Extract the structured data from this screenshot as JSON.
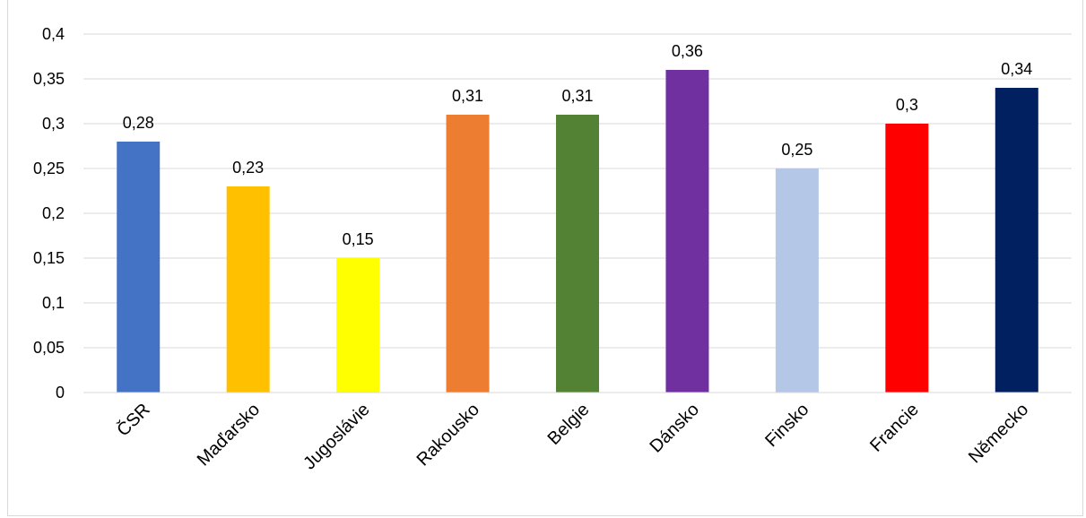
{
  "chart_data": {
    "type": "bar",
    "title": "",
    "categories": [
      "ČSR",
      "Maďarsko",
      "Jugoslávie",
      "Rakousko",
      "Belgie",
      "Dánsko",
      "Finsko",
      "Francie",
      "Německo"
    ],
    "values": [
      0.28,
      0.23,
      0.15,
      0.31,
      0.31,
      0.36,
      0.25,
      0.3,
      0.34
    ],
    "data_labels": [
      "0,28",
      "0,23",
      "0,15",
      "0,31",
      "0,31",
      "0,36",
      "0,25",
      "0,3",
      "0,34"
    ],
    "colors": [
      "#4472C4",
      "#FFC000",
      "#FFFF00",
      "#ED7D31",
      "#548235",
      "#7030A0",
      "#B4C7E7",
      "#FF0000",
      "#002060"
    ],
    "ylim": [
      0,
      0.4
    ],
    "yticks": [
      0,
      0.05,
      0.1,
      0.15,
      0.2,
      0.25,
      0.3,
      0.35,
      0.4
    ],
    "ytick_labels": [
      "0",
      "0,05",
      "0,1",
      "0,15",
      "0,2",
      "0,25",
      "0,3",
      "0,35",
      "0,4"
    ],
    "grid": true,
    "legend": "none",
    "xlabel": "",
    "ylabel": ""
  }
}
